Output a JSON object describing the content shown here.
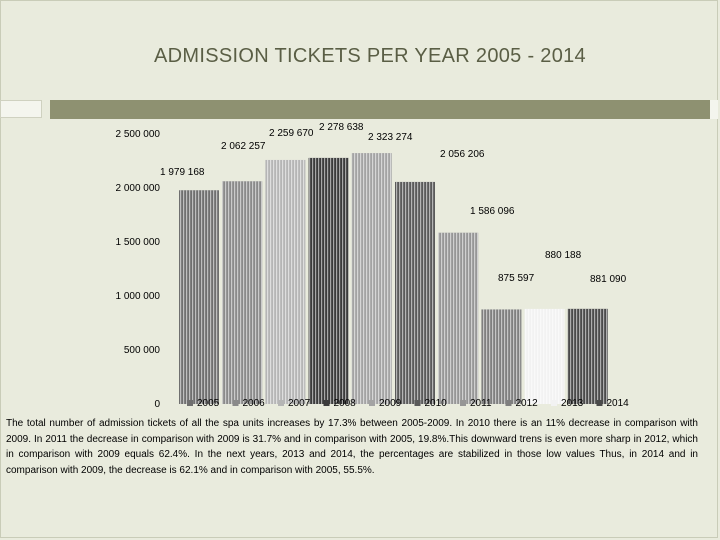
{
  "slide": {
    "title": "ADMISSION TICKETS PER YEAR 2005 - 2014",
    "caption": "The total number of admission tickets of all the spa units increases by 17.3% between 2005-2009. In 2010 there is an 11% decrease in comparison with 2009. In 2011 the decrease in comparison with 2009 is 31.7% and in comparison with 2005, 19.8%.This downward trens is even more sharp in 2012, which in comparison with 2009 equals 62.4%. In the next years, 2013 and 2014, the percentages are stabilized in those low values Thus, in 2014 and in comparison with 2009, the decrease is 62.1% and in comparison with 2005, 55.5%."
  },
  "chart_data": {
    "type": "bar",
    "categories": [
      "2005",
      "2006",
      "2007",
      "2008",
      "2009",
      "2010",
      "2011",
      "2012",
      "2013",
      "2014"
    ],
    "values": [
      1979168,
      2062257,
      2259670,
      2278638,
      2323274,
      2056206,
      1586096,
      875597,
      880188,
      881090
    ],
    "labels": [
      "1 979 168",
      "2 062 257",
      "2 259 670",
      "2 278 638",
      "2 323 274",
      "2 056 206",
      "1 586 096",
      "875 597",
      "880 188",
      "881 090"
    ],
    "ylim": [
      0,
      2500000
    ],
    "yticks": [
      0,
      500000,
      1000000,
      1500000,
      2000000,
      2500000
    ],
    "ytick_labels": [
      "0",
      "500 000",
      "1 000 000",
      "1 500 000",
      "2 000 000",
      "2 500 000"
    ],
    "colors": [
      "#6f6f6f",
      "#8a8a8a",
      "#b5b5b5",
      "#3b3b3b",
      "#a3a3a3",
      "#5a5a5a",
      "#969696",
      "#7f7f7f",
      "#f2f2f2",
      "#4a4a4a"
    ],
    "title": "",
    "xlabel": "",
    "ylabel": "",
    "legend": "bottom",
    "grid": false
  }
}
